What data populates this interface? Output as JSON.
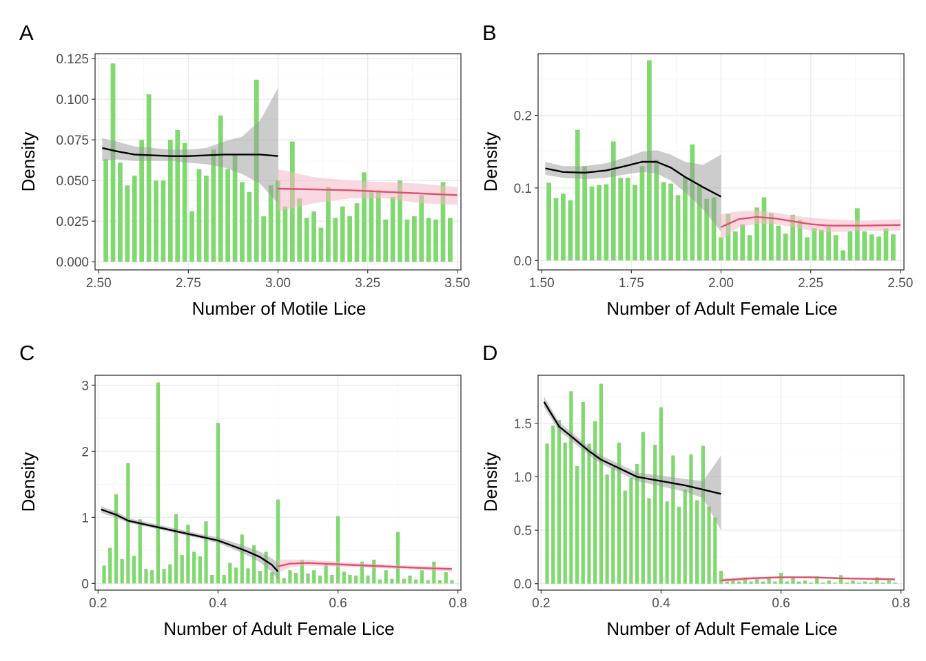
{
  "figure": {
    "panels": [
      {
        "tag": "A",
        "xlabel": "Number of Motile Lice",
        "ylabel": "Density"
      },
      {
        "tag": "B",
        "xlabel": "Number of Adult Female Lice",
        "ylabel": "Density"
      },
      {
        "tag": "C",
        "xlabel": "Number of Adult Female Lice",
        "ylabel": "Density"
      },
      {
        "tag": "D",
        "xlabel": "Number of Adult Female Lice",
        "ylabel": "Density"
      }
    ]
  },
  "colors": {
    "bar": "#7fd96f",
    "left_fit": "#000000",
    "left_band": "#999999",
    "right_fit": "#e0506e",
    "right_band": "#f4b8c6",
    "grid_major": "#ebebeb",
    "grid_minor": "#f5f5f5",
    "panel_border": "#333333",
    "tick_label": "#4d4d4d"
  },
  "chart_data": [
    {
      "type": "bar",
      "panel": "A",
      "xlabel": "Number of Motile Lice",
      "ylabel": "Density",
      "xlim": [
        2.49,
        3.51
      ],
      "ylim": [
        -0.005,
        0.128
      ],
      "xticks": [
        2.5,
        2.75,
        3.0,
        3.25,
        3.5
      ],
      "xtick_labels": [
        "2.50",
        "2.75",
        "3.00",
        "3.25",
        "3.50"
      ],
      "yticks": [
        0,
        0.025,
        0.05,
        0.075,
        0.1,
        0.125
      ],
      "ytick_labels": [
        "0.000",
        "0.025",
        "0.050",
        "0.075",
        "0.100",
        "0.125"
      ],
      "grid": true,
      "bar_width": 0.013,
      "bars": {
        "x": [
          2.52,
          2.54,
          2.56,
          2.58,
          2.6,
          2.62,
          2.64,
          2.66,
          2.68,
          2.7,
          2.72,
          2.74,
          2.76,
          2.78,
          2.8,
          2.82,
          2.84,
          2.86,
          2.88,
          2.9,
          2.92,
          2.94,
          2.96,
          2.98,
          3.0,
          3.02,
          3.04,
          3.06,
          3.08,
          3.1,
          3.12,
          3.14,
          3.16,
          3.18,
          3.2,
          3.22,
          3.24,
          3.26,
          3.28,
          3.3,
          3.32,
          3.34,
          3.36,
          3.38,
          3.4,
          3.42,
          3.44,
          3.46,
          3.48
        ],
        "y": [
          0.063,
          0.122,
          0.061,
          0.047,
          0.053,
          0.075,
          0.103,
          0.05,
          0.05,
          0.075,
          0.081,
          0.073,
          0.031,
          0.057,
          0.053,
          0.069,
          0.09,
          0.057,
          0.066,
          0.049,
          0.043,
          0.112,
          0.028,
          0.047,
          0.05,
          0.034,
          0.074,
          0.039,
          0.027,
          0.031,
          0.021,
          0.046,
          0.027,
          0.034,
          0.028,
          0.036,
          0.055,
          0.044,
          0.044,
          0.026,
          0.04,
          0.05,
          0.026,
          0.028,
          0.041,
          0.027,
          0.026,
          0.049,
          0.027
        ]
      },
      "left_fit": {
        "x": [
          2.51,
          2.55,
          2.6,
          2.65,
          2.7,
          2.75,
          2.8,
          2.85,
          2.9,
          2.95,
          3.0
        ],
        "y": [
          0.07,
          0.068,
          0.066,
          0.0655,
          0.065,
          0.065,
          0.0655,
          0.066,
          0.066,
          0.066,
          0.065
        ],
        "lower": [
          0.062,
          0.063,
          0.062,
          0.062,
          0.062,
          0.061,
          0.06,
          0.058,
          0.054,
          0.048,
          0.036
        ],
        "upper": [
          0.076,
          0.074,
          0.071,
          0.07,
          0.069,
          0.069,
          0.07,
          0.074,
          0.077,
          0.087,
          0.107
        ]
      },
      "right_fit": {
        "x": [
          3.0,
          3.1,
          3.2,
          3.3,
          3.4,
          3.5
        ],
        "y": [
          0.045,
          0.0445,
          0.044,
          0.043,
          0.042,
          0.041
        ],
        "lower": [
          0.031,
          0.036,
          0.039,
          0.039,
          0.036,
          0.035
        ],
        "upper": [
          0.057,
          0.052,
          0.05,
          0.049,
          0.048,
          0.046
        ]
      }
    },
    {
      "type": "bar",
      "panel": "B",
      "xlabel": "Number of Adult Female Lice",
      "ylabel": "Density",
      "xlim": [
        1.49,
        2.51
      ],
      "ylim": [
        -0.013,
        0.285
      ],
      "xticks": [
        1.5,
        1.75,
        2.0,
        2.25,
        2.5
      ],
      "xtick_labels": [
        "1.50",
        "1.75",
        "2.00",
        "2.25",
        "2.50"
      ],
      "yticks": [
        0,
        0.1,
        0.2
      ],
      "ytick_labels": [
        "0.0",
        "0.1",
        "0.2"
      ],
      "grid": true,
      "bar_width": 0.013,
      "bars": {
        "x": [
          1.52,
          1.54,
          1.56,
          1.58,
          1.6,
          1.62,
          1.64,
          1.66,
          1.68,
          1.7,
          1.72,
          1.74,
          1.76,
          1.78,
          1.8,
          1.82,
          1.84,
          1.86,
          1.88,
          1.9,
          1.92,
          1.94,
          1.96,
          1.98,
          2.0,
          2.02,
          2.04,
          2.06,
          2.08,
          2.1,
          2.12,
          2.14,
          2.16,
          2.18,
          2.2,
          2.22,
          2.24,
          2.26,
          2.28,
          2.3,
          2.32,
          2.34,
          2.36,
          2.38,
          2.4,
          2.42,
          2.44,
          2.46,
          2.48
        ],
        "y": [
          0.107,
          0.086,
          0.092,
          0.083,
          0.18,
          0.13,
          0.102,
          0.104,
          0.105,
          0.164,
          0.114,
          0.114,
          0.104,
          0.13,
          0.276,
          0.139,
          0.108,
          0.106,
          0.09,
          0.115,
          0.16,
          0.105,
          0.085,
          0.087,
          0.032,
          0.064,
          0.04,
          0.05,
          0.035,
          0.073,
          0.087,
          0.065,
          0.048,
          0.037,
          0.063,
          0.056,
          0.032,
          0.045,
          0.042,
          0.046,
          0.035,
          0.014,
          0.04,
          0.072,
          0.04,
          0.036,
          0.033,
          0.044,
          0.036
        ]
      },
      "left_fit": {
        "x": [
          1.51,
          1.56,
          1.62,
          1.68,
          1.74,
          1.78,
          1.82,
          1.86,
          1.9,
          1.95,
          2.0
        ],
        "y": [
          0.127,
          0.122,
          0.121,
          0.124,
          0.131,
          0.136,
          0.136,
          0.128,
          0.115,
          0.101,
          0.088
        ],
        "lower": [
          0.118,
          0.114,
          0.112,
          0.114,
          0.119,
          0.122,
          0.12,
          0.11,
          0.094,
          0.07,
          0.04
        ],
        "upper": [
          0.136,
          0.13,
          0.13,
          0.134,
          0.143,
          0.15,
          0.152,
          0.146,
          0.136,
          0.132,
          0.146
        ]
      },
      "right_fit": {
        "x": [
          2.0,
          2.05,
          2.1,
          2.15,
          2.2,
          2.25,
          2.3,
          2.35,
          2.4,
          2.5
        ],
        "y": [
          0.046,
          0.057,
          0.06,
          0.058,
          0.054,
          0.05,
          0.048,
          0.048,
          0.048,
          0.049
        ],
        "lower": [
          0.028,
          0.046,
          0.051,
          0.05,
          0.046,
          0.041,
          0.039,
          0.04,
          0.041,
          0.041
        ],
        "upper": [
          0.064,
          0.068,
          0.069,
          0.066,
          0.062,
          0.059,
          0.057,
          0.056,
          0.055,
          0.057
        ]
      }
    },
    {
      "type": "bar",
      "panel": "C",
      "xlabel": "Number of Adult Female Lice",
      "ylabel": "Density",
      "xlim": [
        0.195,
        0.805
      ],
      "ylim": [
        -0.1,
        3.15
      ],
      "xticks": [
        0.2,
        0.4,
        0.6,
        0.8
      ],
      "xtick_labels": [
        "0.2",
        "0.4",
        "0.6",
        "0.8"
      ],
      "yticks": [
        0,
        1,
        2,
        3
      ],
      "ytick_labels": [
        "0",
        "1",
        "2",
        "3"
      ],
      "grid": true,
      "bar_width": 0.006,
      "bars": {
        "x": [
          0.21,
          0.22,
          0.23,
          0.24,
          0.25,
          0.26,
          0.27,
          0.28,
          0.29,
          0.3,
          0.31,
          0.32,
          0.33,
          0.34,
          0.35,
          0.36,
          0.37,
          0.38,
          0.39,
          0.4,
          0.41,
          0.42,
          0.43,
          0.44,
          0.45,
          0.46,
          0.47,
          0.48,
          0.49,
          0.5,
          0.51,
          0.52,
          0.53,
          0.54,
          0.55,
          0.56,
          0.57,
          0.58,
          0.59,
          0.6,
          0.61,
          0.62,
          0.63,
          0.64,
          0.65,
          0.66,
          0.67,
          0.68,
          0.69,
          0.7,
          0.71,
          0.72,
          0.73,
          0.74,
          0.75,
          0.76,
          0.77,
          0.78,
          0.79
        ],
        "y": [
          0.27,
          0.54,
          1.35,
          0.37,
          1.82,
          0.42,
          0.97,
          0.22,
          0.2,
          3.04,
          0.22,
          0.29,
          1.05,
          0.43,
          0.89,
          0.48,
          0.41,
          0.94,
          0.13,
          2.43,
          0.13,
          0.31,
          0.24,
          0.74,
          0.23,
          0.58,
          0.19,
          0.48,
          0.17,
          1.27,
          0.08,
          0.2,
          0.16,
          0.36,
          0.15,
          0.2,
          0.12,
          0.29,
          0.13,
          1.02,
          0.18,
          0.13,
          0.12,
          0.33,
          0.12,
          0.36,
          0.06,
          0.2,
          0.07,
          0.78,
          0.07,
          0.12,
          0.06,
          0.2,
          0.05,
          0.33,
          0.05,
          0.17,
          0.05
        ]
      },
      "left_fit": {
        "x": [
          0.205,
          0.23,
          0.25,
          0.28,
          0.31,
          0.34,
          0.37,
          0.4,
          0.43,
          0.45,
          0.47,
          0.49,
          0.5
        ],
        "y": [
          1.12,
          1.04,
          0.95,
          0.89,
          0.83,
          0.77,
          0.71,
          0.65,
          0.55,
          0.48,
          0.4,
          0.28,
          0.18
        ],
        "lower": [
          1.07,
          0.99,
          0.92,
          0.86,
          0.8,
          0.74,
          0.68,
          0.61,
          0.5,
          0.42,
          0.32,
          0.17,
          0.05
        ],
        "upper": [
          1.17,
          1.09,
          0.99,
          0.93,
          0.87,
          0.81,
          0.75,
          0.7,
          0.61,
          0.55,
          0.48,
          0.38,
          0.3
        ]
      },
      "right_fit": {
        "x": [
          0.5,
          0.52,
          0.55,
          0.6,
          0.65,
          0.7,
          0.75,
          0.79
        ],
        "y": [
          0.26,
          0.3,
          0.31,
          0.29,
          0.27,
          0.25,
          0.23,
          0.22
        ],
        "lower": [
          0.16,
          0.24,
          0.27,
          0.25,
          0.24,
          0.22,
          0.2,
          0.18
        ],
        "upper": [
          0.36,
          0.36,
          0.36,
          0.33,
          0.3,
          0.28,
          0.26,
          0.25
        ]
      }
    },
    {
      "type": "bar",
      "panel": "D",
      "xlabel": "Number of Adult Female Lice",
      "ylabel": "Density",
      "xlim": [
        0.195,
        0.805
      ],
      "ylim": [
        -0.06,
        1.95
      ],
      "xticks": [
        0.2,
        0.4,
        0.6,
        0.8
      ],
      "xtick_labels": [
        "0.2",
        "0.4",
        "0.6",
        "0.8"
      ],
      "yticks": [
        0,
        0.5,
        1.0,
        1.5
      ],
      "ytick_labels": [
        "0.0",
        "0.5",
        "1.0",
        "1.5"
      ],
      "grid": true,
      "bar_width": 0.006,
      "bars": {
        "x": [
          0.21,
          0.22,
          0.23,
          0.24,
          0.25,
          0.26,
          0.27,
          0.28,
          0.29,
          0.3,
          0.31,
          0.32,
          0.33,
          0.34,
          0.35,
          0.36,
          0.37,
          0.38,
          0.39,
          0.4,
          0.41,
          0.42,
          0.43,
          0.44,
          0.45,
          0.46,
          0.47,
          0.48,
          0.49,
          0.5,
          0.51,
          0.52,
          0.53,
          0.54,
          0.55,
          0.56,
          0.57,
          0.58,
          0.59,
          0.6,
          0.61,
          0.62,
          0.63,
          0.64,
          0.65,
          0.66,
          0.67,
          0.68,
          0.69,
          0.7,
          0.71,
          0.72,
          0.73,
          0.74,
          0.75,
          0.76,
          0.77,
          0.78,
          0.79
        ],
        "y": [
          1.31,
          1.48,
          1.53,
          1.32,
          1.8,
          1.1,
          1.7,
          1.31,
          1.52,
          1.87,
          1.02,
          1.09,
          1.32,
          0.87,
          0.99,
          1.12,
          1.42,
          0.8,
          1.3,
          1.65,
          0.77,
          1.2,
          0.72,
          0.88,
          1.21,
          0.78,
          1.29,
          0.72,
          0.62,
          0.12,
          0.02,
          0.04,
          0.02,
          0.06,
          0.02,
          0.05,
          0.02,
          0.05,
          0.02,
          0.1,
          0.02,
          0.06,
          0.02,
          0.03,
          0.01,
          0.07,
          0.01,
          0.03,
          0.01,
          0.08,
          0.01,
          0.03,
          0.01,
          0.02,
          0.01,
          0.06,
          0.01,
          0.03,
          0.01
        ]
      },
      "left_fit": {
        "x": [
          0.205,
          0.23,
          0.25,
          0.28,
          0.3,
          0.33,
          0.36,
          0.4,
          0.44,
          0.47,
          0.5
        ],
        "y": [
          1.7,
          1.47,
          1.38,
          1.24,
          1.16,
          1.08,
          1.0,
          0.96,
          0.92,
          0.88,
          0.84
        ],
        "lower": [
          1.65,
          1.43,
          1.34,
          1.2,
          1.12,
          1.04,
          0.96,
          0.91,
          0.86,
          0.8,
          0.5
        ],
        "upper": [
          1.75,
          1.51,
          1.42,
          1.28,
          1.2,
          1.12,
          1.04,
          1.01,
          0.98,
          0.96,
          1.2
        ]
      },
      "right_fit": {
        "x": [
          0.5,
          0.55,
          0.6,
          0.65,
          0.7,
          0.75,
          0.79
        ],
        "y": [
          0.03,
          0.05,
          0.06,
          0.06,
          0.05,
          0.045,
          0.04
        ],
        "lower": [
          0.01,
          0.035,
          0.05,
          0.05,
          0.04,
          0.035,
          0.03
        ],
        "upper": [
          0.05,
          0.065,
          0.07,
          0.07,
          0.06,
          0.055,
          0.05
        ]
      }
    }
  ]
}
